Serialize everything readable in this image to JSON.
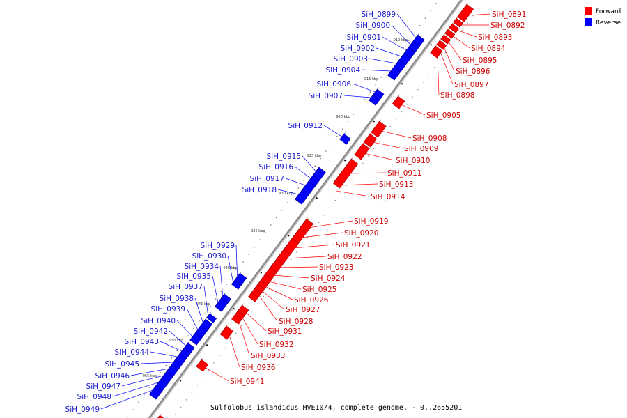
{
  "caption": "Sulfolobus islandicus HVE10/4, complete genome. - 0..2655201",
  "legend": [
    {
      "label": "Forward",
      "color": "#ff0000"
    },
    {
      "label": "Reverse",
      "color": "#0000ff"
    }
  ],
  "colors": {
    "forward": "#ff0000",
    "reverse": "#0000ff",
    "line": "#666666",
    "backbone": "#999999"
  },
  "kbp_ticks": [
    {
      "label": "910 kbp"
    },
    {
      "label": "915 kbp"
    },
    {
      "label": "920 kbp"
    },
    {
      "label": "925 kbp"
    },
    {
      "label": "930 kbp"
    },
    {
      "label": "935 kbp"
    },
    {
      "label": "940 kbp"
    },
    {
      "label": "945 kbp"
    },
    {
      "label": "950 kbp"
    },
    {
      "label": "955 kbp"
    }
  ],
  "forward_labels": [
    "SiH_0891",
    "SiH_0892",
    "SiH_0893",
    "SiH_0894",
    "SiH_0895",
    "SiH_0896",
    "SiH_0897",
    "SiH_0898",
    "SiH_0905",
    "SiH_0908",
    "SiH_0909",
    "SiH_0910",
    "SiH_0911",
    "SiH_0913",
    "SiH_0914",
    "SiH_0919",
    "SiH_0920",
    "SiH_0921",
    "SiH_0922",
    "SiH_0923",
    "SiH_0924",
    "SiH_0925",
    "SiH_0926",
    "SiH_0927",
    "SiH_0928",
    "SiH_0931",
    "SiH_0932",
    "SiH_0933",
    "SiH_0936",
    "SiH_0941"
  ],
  "reverse_labels": [
    "SiH_0899",
    "SiH_0900",
    "SiH_0901",
    "SiH_0902",
    "SiH_0903",
    "SiH_0904",
    "SiH_0906",
    "SiH_0907",
    "SiH_0912",
    "SiH_0915",
    "SiH_0916",
    "SiH_0917",
    "SiH_0918",
    "SiH_0929",
    "SiH_0930",
    "SiH_0934",
    "SiH_0935",
    "SiH_0937",
    "SiH_0938",
    "SiH_0939",
    "SiH_0940",
    "SiH_0942",
    "SiH_0943",
    "SiH_0944",
    "SiH_0945",
    "SiH_0946",
    "SiH_0947",
    "SiH_0948",
    "SiH_0949"
  ]
}
